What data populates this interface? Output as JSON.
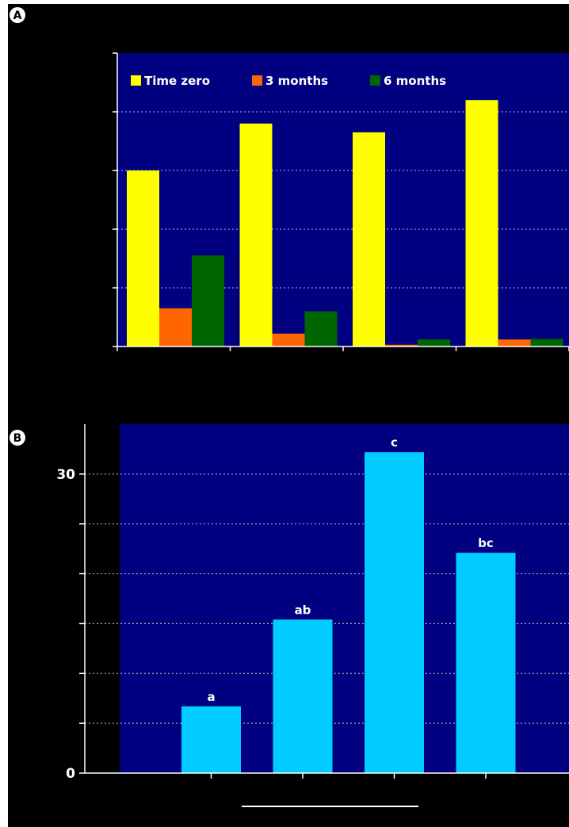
{
  "panels": {
    "a": {
      "label": "A"
    },
    "b": {
      "label": "B"
    }
  },
  "colors": {
    "background": "#000000",
    "plot_area": "#000080",
    "series_time_zero": "#ffff00",
    "series_3_months": "#ff6600",
    "series_6_months": "#006600",
    "bar_b": "#00ccff",
    "grid": "#bbbbbb",
    "axis": "#ffffff"
  },
  "chart_data": [
    {
      "type": "bar",
      "title": "",
      "xlabel": "",
      "ylabel": "",
      "categories": [
        "",
        "",
        "",
        ""
      ],
      "series": [
        {
          "name": "Time zero",
          "values": [
            3.0,
            3.8,
            3.65,
            4.2
          ]
        },
        {
          "name": "3 months",
          "values": [
            0.65,
            0.22,
            0.03,
            0.12
          ]
        },
        {
          "name": "6 months",
          "values": [
            1.55,
            0.6,
            0.12,
            0.13
          ]
        }
      ],
      "ylim": [
        0,
        5
      ],
      "yticks": [
        0,
        1,
        2,
        3,
        4,
        5
      ],
      "grid": true,
      "legend": "top"
    },
    {
      "type": "bar",
      "title": "",
      "xlabel": "",
      "ylabel": "",
      "categories": [
        "",
        "",
        "",
        ""
      ],
      "values": [
        6.7,
        15.4,
        32.2,
        22.1
      ],
      "bar_labels": [
        "a",
        "ab",
        "c",
        "bc"
      ],
      "ylim": [
        0,
        35
      ],
      "yticks": [
        0,
        5,
        10,
        15,
        20,
        25,
        30
      ],
      "ytick_labels": [
        "0",
        "",
        "",
        "",
        "",
        "",
        "30"
      ],
      "grid": true
    }
  ]
}
